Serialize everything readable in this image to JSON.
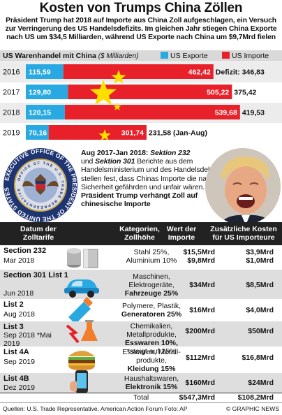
{
  "title": "Kosten von Trumps China Zöllen",
  "intro": "Präsident Trump hat 2018 auf Importe aus China Zoll aufgeschlagen, ein Versuch zur Verringerung des US Handelsdefizits. Im gleichen Jahr stiegen China Exporte nach US um $34,5 Milliarden, während US Exporte nach China um $9,7Mrd fielen",
  "legend": {
    "title": "US Warenhandel mit China",
    "unit": "($ Milliarden)",
    "exports_label": "US Exporte",
    "imports_label": "US Importe",
    "exports_color": "#29a9e1",
    "imports_color": "#e8202a"
  },
  "chart_data": {
    "type": "bar",
    "stacked": true,
    "orientation": "horizontal",
    "categories": [
      "2016",
      "2017",
      "2018",
      "2019"
    ],
    "series": [
      {
        "name": "US Exporte",
        "values": [
          115.59,
          129.8,
          120.15,
          70.16
        ],
        "labels": [
          "115,59",
          "129,80",
          "120,15",
          "70,16"
        ],
        "color": "#29a9e1"
      },
      {
        "name": "US Importe",
        "values": [
          462.42,
          505.22,
          539.68,
          301.74
        ],
        "labels": [
          "462,42",
          "505,22",
          "539,68",
          "301,74"
        ],
        "color": "#e8202a"
      }
    ],
    "deficit": [
      "Defizit: 346,83",
      "375,42",
      "419,53",
      "231,58 (Jan-Aug)"
    ]
  },
  "story": {
    "lead": "Aug 2017-Jan 2018:",
    "s232": "Sektion 232",
    "mid1": "und",
    "s301": "Sektion 301",
    "body": "Berichte aus dem Handelsministerium und des Handelsdelegierten stellen fest, dass Chinas Importe die nationale Sicherheit gefährden und unfair wären.",
    "tail": "Präsident Trump verhängt Zoll auf chinesische Importe"
  },
  "seal": {
    "outer": "EXECUTIVE OFFICE OF THE PRESIDENT OF THE UNITED STATES",
    "inner": "OFFICE OF THE U.S. TRADE REPRESENTATIVE"
  },
  "table": {
    "headers": [
      "Datum der Zolltarife",
      "Kategorien, Zollhöhe",
      "Wert der Importe",
      "Zusätzliche Kosten für US Importeure"
    ],
    "rows": [
      {
        "name": "Section 232",
        "date": "Mar 2018",
        "cat": [
          "Stahl 25%,",
          "Aluminium 10%"
        ],
        "imp": [
          "$15,5Mrd",
          "$9,8Mrd"
        ],
        "extra": [
          "$3,9Mrd",
          "$1,0Mrd"
        ]
      },
      {
        "name": "Section 301 List 1",
        "date": "Jun 2018",
        "cat": [
          "Maschinen,",
          "Elektrogeräte,",
          "Fahrzeuge 25%"
        ],
        "imp": [
          "$34Mrd"
        ],
        "extra": [
          "$8,5Mrd"
        ]
      },
      {
        "name": "List 2",
        "date": "Aug 2018",
        "cat": [
          "Polymere, Plastik,",
          "Generatoren 25%"
        ],
        "imp": [
          "$16Mrd"
        ],
        "extra": [
          "$4,0Mrd"
        ]
      },
      {
        "name": "List 3",
        "date": "Sep 2018 *Mai 2019",
        "cat": [
          "Chemikalien, Metallprodukte,",
          "Esswaren 10%,",
          "*steigt auf 25%"
        ],
        "imp": [
          "$200Mrd"
        ],
        "extra": [
          "$50Mrd"
        ]
      },
      {
        "name": "List 4A",
        "date": "Sep 2019",
        "cat": [
          "Esswaren, Metall-",
          "produkte,",
          "Kleidung 15%"
        ],
        "imp": [
          "$112Mrd"
        ],
        "extra": [
          "$16,8Mrd"
        ]
      },
      {
        "name": "List 4B",
        "date": "Dez 2019",
        "cat": [
          "Haushaltswaren,",
          "Elektronik 15%"
        ],
        "imp": [
          "$160Mrd"
        ],
        "extra": [
          "$24Mrd"
        ]
      }
    ],
    "total_label": "Total",
    "total_imp": "$547,3Mrd",
    "total_extra": "$108,2Mrd"
  },
  "footer": {
    "source": "Quellen: U.S. Trade Representative, American Action Forum   Foto: AP",
    "credit": "© GRAPHIC NEWS"
  }
}
